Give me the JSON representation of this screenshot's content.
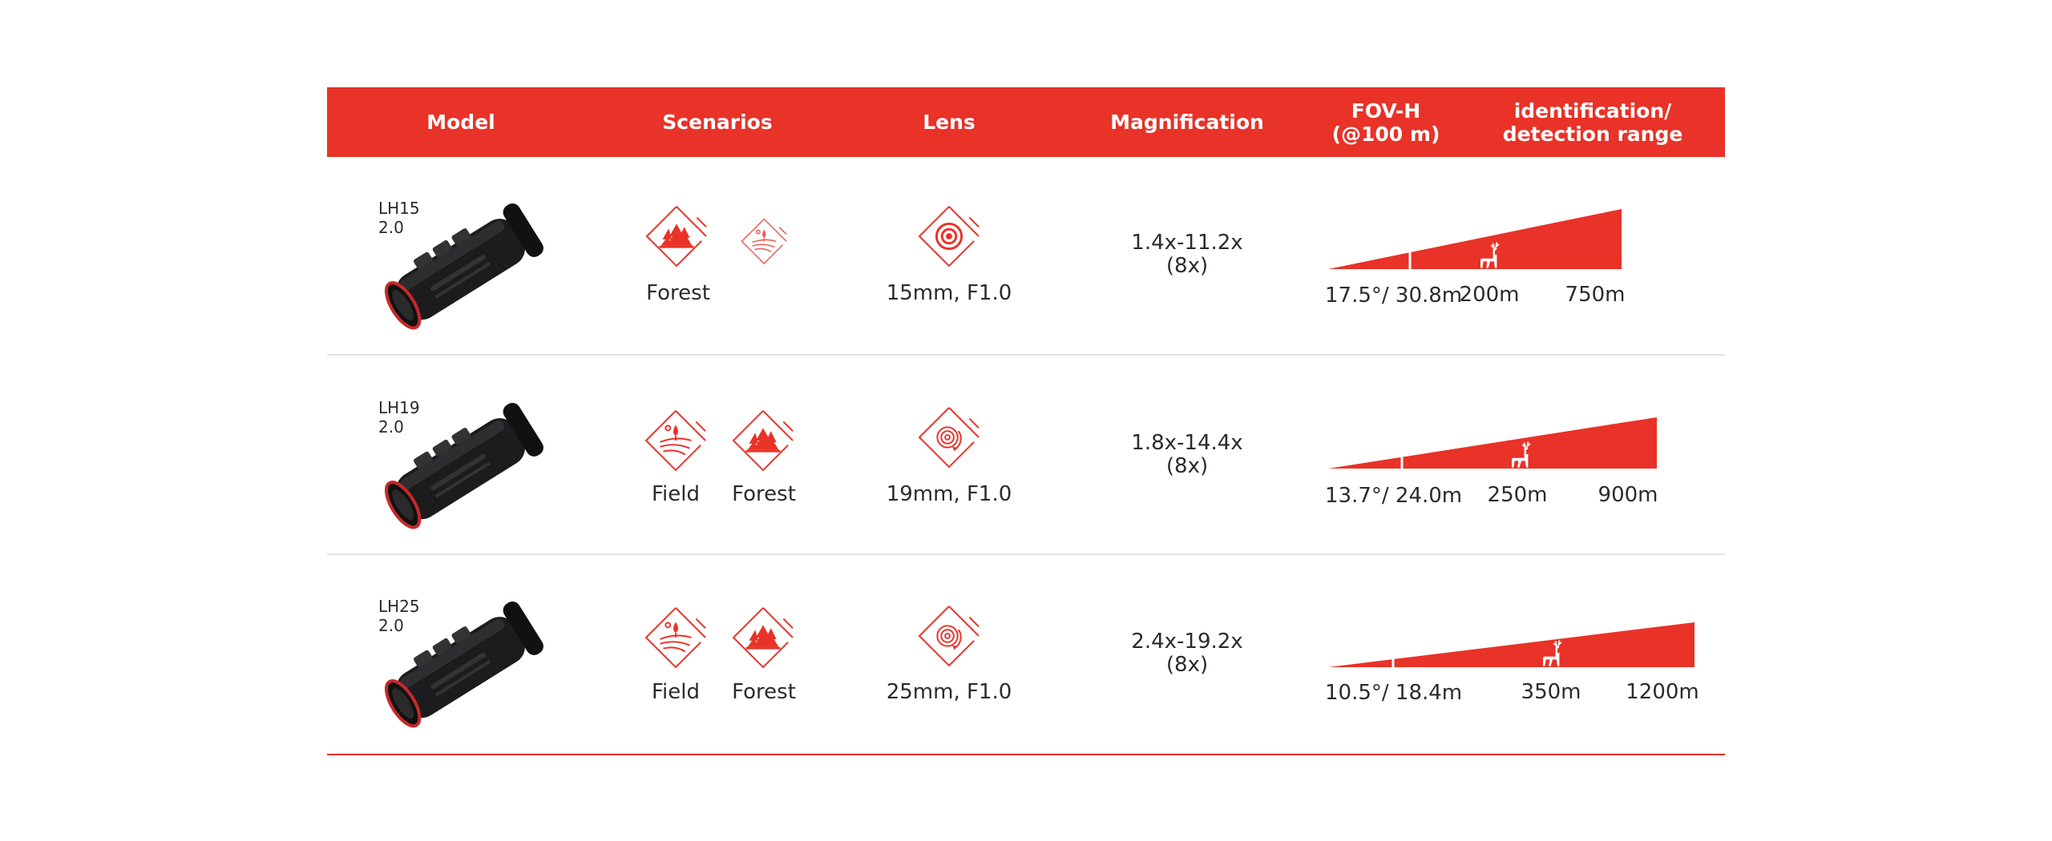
{
  "colors": {
    "accent": "#e93228",
    "text": "#2b2b2b",
    "divider": "#e2e2e2"
  },
  "header": {
    "model": "Model",
    "scenarios": "Scenarios",
    "lens": "Lens",
    "magnification": "Magnification",
    "fov": "FOV-H\n(@100 m)",
    "range": "identification/\ndetection range"
  },
  "rows": [
    {
      "model": "LH15 2.0",
      "scenarios": [
        {
          "icon": "forest-icon",
          "label": "Forest"
        },
        {
          "icon": "field-icon",
          "label": "",
          "faded": true
        }
      ],
      "lens_icon": "lens-target-icon",
      "lens": "15mm, F1.0",
      "magnification": "1.4x-11.2x",
      "magnification_sub": "(8x)",
      "fov": "17.5°/ 30.8m",
      "identification": "200m",
      "detection": "750m"
    },
    {
      "model": "LH19 2.0",
      "scenarios": [
        {
          "icon": "field-icon",
          "label": "Field"
        },
        {
          "icon": "forest-icon",
          "label": "Forest"
        }
      ],
      "lens_icon": "lens-zoom-icon",
      "lens": "19mm, F1.0",
      "magnification": "1.8x-14.4x",
      "magnification_sub": "(8x)",
      "fov": "13.7°/ 24.0m",
      "identification": "250m",
      "detection": "900m"
    },
    {
      "model": "LH25 2.0",
      "scenarios": [
        {
          "icon": "field-icon",
          "label": "Field"
        },
        {
          "icon": "forest-icon",
          "label": "Forest"
        }
      ],
      "lens_icon": "lens-zoom-icon",
      "lens": "25mm, F1.0",
      "magnification": "2.4x-19.2x",
      "magnification_sub": "(8x)",
      "fov": "10.5°/ 18.4m",
      "identification": "350m",
      "detection": "1200m"
    }
  ]
}
